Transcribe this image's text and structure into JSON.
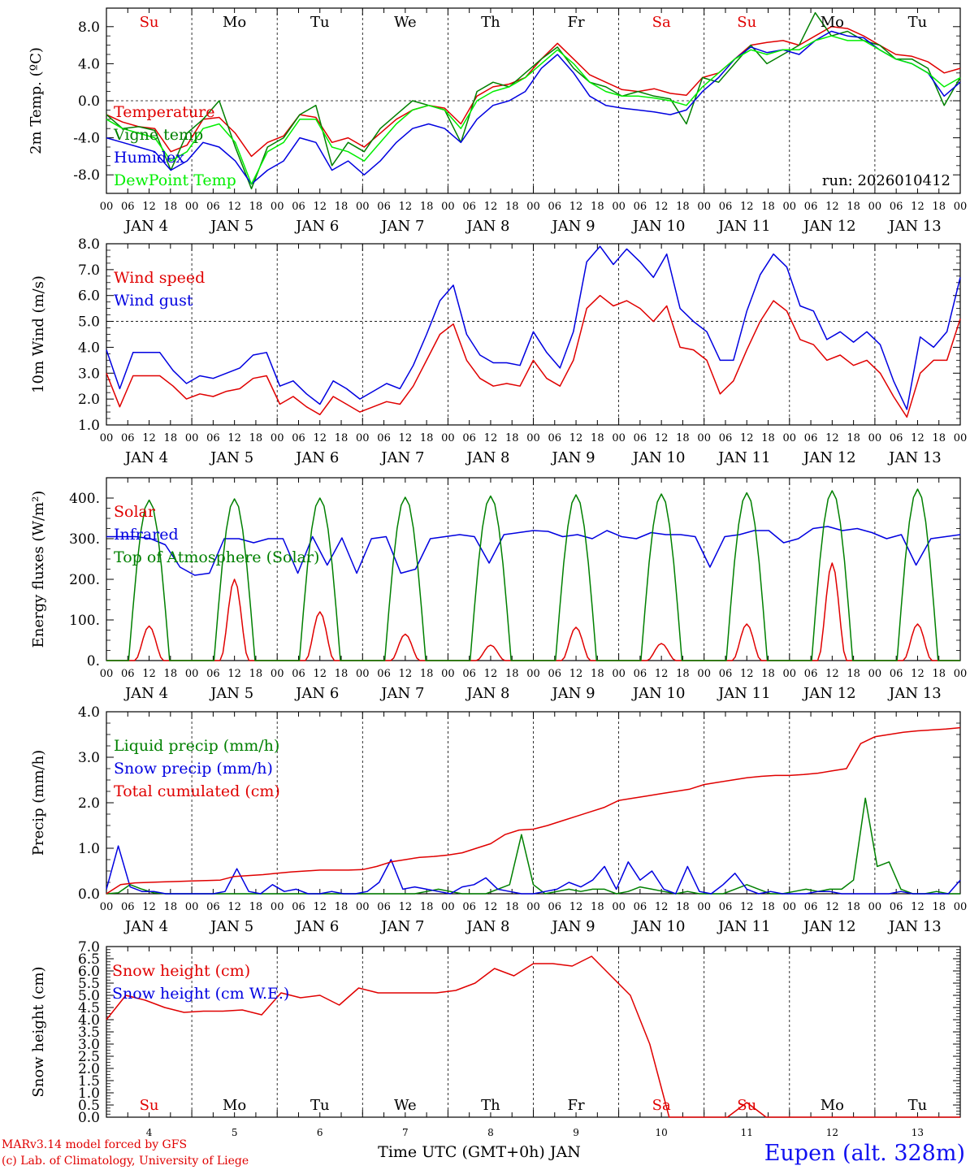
{
  "location": "Eupen (alt. 328m)",
  "credits": [
    "MARv3.14 model forced by GFS",
    "(c) Lab. of Climatology, University of Liege"
  ],
  "x_axis": {
    "title": "Time UTC (GMT+0h) JAN",
    "hour_ticks": [
      "00",
      "06",
      "12",
      "18"
    ],
    "date_labels": [
      "JAN  4",
      "JAN  5",
      "JAN  6",
      "JAN  7",
      "JAN  8",
      "JAN  9",
      "JAN 10",
      "JAN 11",
      "JAN 12",
      "JAN 13"
    ],
    "day_numbers": [
      "4",
      "5",
      "6",
      "7",
      "8",
      "9",
      "10",
      "11",
      "12",
      "13"
    ],
    "weekdays": [
      "Su",
      "Mo",
      "Tu",
      "We",
      "Th",
      "Fr",
      "Sa",
      "Su",
      "Mo",
      "Tu"
    ],
    "weekday_colors": [
      "#e00000",
      "#000000",
      "#000000",
      "#000000",
      "#000000",
      "#000000",
      "#e00000",
      "#e00000",
      "#000000",
      "#000000"
    ]
  },
  "chart_data": [
    {
      "type": "line",
      "panel": "temperature",
      "ylabel": "2m Temp. (ºC)",
      "ylim": [
        -10,
        10
      ],
      "ytick_labels": [
        "-8.0",
        "-4.0",
        "0.0",
        "4.0",
        "8.0"
      ],
      "reference_line": 0,
      "run_label": "run: 2026010412",
      "series": [
        {
          "name": "Temperature",
          "color": "#e00000",
          "values": [
            -1.5,
            -2.3,
            -2.8,
            -3.0,
            -5.5,
            -4.8,
            -2.0,
            -1.8,
            -3.5,
            -6.0,
            -4.5,
            -3.8,
            -1.5,
            -1.8,
            -4.5,
            -4.0,
            -5.0,
            -3.5,
            -2.0,
            -1.0,
            -0.5,
            -0.8,
            -2.5,
            0.5,
            1.5,
            1.8,
            2.5,
            4.5,
            6.2,
            4.5,
            2.8,
            2.0,
            1.2,
            1.0,
            1.3,
            0.8,
            0.6,
            2.5,
            3.0,
            4.5,
            6.0,
            6.3,
            6.5,
            6.0,
            7.0,
            8.0,
            7.8,
            7.0,
            6.0,
            5.0,
            4.8,
            4.2,
            3.0,
            3.5
          ]
        },
        {
          "name": "Vigne temp",
          "color": "#008000",
          "values": [
            -1.5,
            -3.0,
            -2.8,
            -3.2,
            -7.5,
            -3.5,
            -2.0,
            0.0,
            -5.0,
            -9.5,
            -5.0,
            -4.0,
            -1.5,
            -0.5,
            -7.0,
            -4.5,
            -5.5,
            -3.0,
            -1.5,
            0.0,
            -0.5,
            -1.0,
            -4.5,
            1.0,
            2.0,
            1.5,
            3.0,
            4.5,
            5.8,
            3.5,
            2.0,
            1.5,
            0.5,
            1.0,
            0.5,
            0.2,
            -2.5,
            2.5,
            2.0,
            4.0,
            6.0,
            4.0,
            5.0,
            6.0,
            9.5,
            7.0,
            7.5,
            6.5,
            6.0,
            4.5,
            4.5,
            3.5,
            -0.5,
            2.5
          ]
        },
        {
          "name": "Humidex",
          "color": "#0000e0",
          "values": [
            -4.0,
            -4.5,
            -5.0,
            -5.5,
            -7.5,
            -6.5,
            -4.5,
            -5.0,
            -6.5,
            -9.0,
            -7.5,
            -6.5,
            -4.0,
            -4.5,
            -7.5,
            -6.5,
            -8.0,
            -6.5,
            -4.5,
            -3.0,
            -2.5,
            -3.0,
            -4.5,
            -2.0,
            -0.5,
            0.0,
            1.0,
            3.5,
            5.0,
            3.0,
            0.5,
            -0.5,
            -0.8,
            -1.0,
            -1.2,
            -1.5,
            -1.0,
            1.0,
            2.5,
            4.5,
            5.8,
            5.2,
            5.5,
            5.0,
            6.5,
            7.5,
            7.0,
            6.8,
            5.5,
            4.5,
            4.0,
            3.0,
            0.5,
            2.0
          ]
        },
        {
          "name": "DewPoint Temp",
          "color": "#00ee00",
          "values": [
            -2.0,
            -3.0,
            -3.5,
            -4.0,
            -6.5,
            -5.5,
            -3.0,
            -2.5,
            -4.5,
            -9.0,
            -5.5,
            -4.5,
            -2.0,
            -2.0,
            -5.0,
            -5.5,
            -6.5,
            -4.5,
            -2.5,
            -1.0,
            -0.5,
            -1.0,
            -3.0,
            0.0,
            1.0,
            1.5,
            2.5,
            4.0,
            5.5,
            4.0,
            2.0,
            1.0,
            0.5,
            0.5,
            0.3,
            0.0,
            -0.5,
            1.5,
            3.0,
            4.5,
            5.5,
            5.0,
            5.5,
            5.5,
            6.5,
            7.0,
            6.5,
            6.5,
            5.5,
            4.5,
            4.0,
            3.0,
            1.5,
            2.5
          ]
        }
      ]
    },
    {
      "type": "line",
      "panel": "wind",
      "ylabel": "10m Wind (m/s)",
      "ylim": [
        1,
        8
      ],
      "ytick_labels": [
        "1.0",
        "2.0",
        "3.0",
        "4.0",
        "5.0",
        "6.0",
        "7.0",
        "8.0"
      ],
      "reference_line": 5,
      "series": [
        {
          "name": "Wind speed",
          "color": "#e00000",
          "values": [
            3.0,
            1.7,
            2.9,
            2.9,
            2.9,
            2.5,
            2.0,
            2.2,
            2.1,
            2.3,
            2.4,
            2.8,
            2.9,
            1.8,
            2.1,
            1.7,
            1.4,
            2.1,
            1.8,
            1.5,
            1.7,
            1.9,
            1.8,
            2.5,
            3.5,
            4.5,
            4.9,
            3.5,
            2.8,
            2.5,
            2.6,
            2.5,
            3.5,
            2.8,
            2.5,
            3.5,
            5.5,
            6.0,
            5.6,
            5.8,
            5.5,
            5.0,
            5.6,
            4.0,
            3.9,
            3.5,
            2.2,
            2.7,
            3.9,
            5.0,
            5.8,
            5.4,
            4.3,
            4.1,
            3.5,
            3.7,
            3.3,
            3.5,
            3.0,
            2.1,
            1.3,
            3.0,
            3.5,
            3.5,
            5.1
          ]
        },
        {
          "name": "Wind gust",
          "color": "#0000e0",
          "values": [
            3.9,
            2.4,
            3.8,
            3.8,
            3.8,
            3.1,
            2.6,
            2.9,
            2.8,
            3.0,
            3.2,
            3.7,
            3.8,
            2.5,
            2.7,
            2.2,
            1.8,
            2.7,
            2.4,
            2.0,
            2.3,
            2.6,
            2.4,
            3.3,
            4.5,
            5.8,
            6.4,
            4.5,
            3.7,
            3.4,
            3.4,
            3.3,
            4.6,
            3.8,
            3.2,
            4.6,
            7.3,
            7.9,
            7.2,
            7.8,
            7.3,
            6.7,
            7.6,
            5.5,
            5.0,
            4.6,
            3.5,
            3.5,
            5.4,
            6.8,
            7.6,
            7.1,
            5.6,
            5.4,
            4.3,
            4.6,
            4.2,
            4.6,
            4.1,
            2.7,
            1.6,
            4.4,
            4.0,
            4.6,
            6.7
          ]
        }
      ]
    },
    {
      "type": "line",
      "panel": "energy",
      "ylabel": "Energy fluxes (W/m²)",
      "ylim": [
        0,
        450
      ],
      "ytick_labels": [
        "0.",
        "100.",
        "200.",
        "300.",
        "400."
      ],
      "series": [
        {
          "name": "Solar",
          "color": "#e00000",
          "peaks": [
            85,
            200,
            120,
            65,
            38,
            82,
            42,
            90,
            240,
            90
          ]
        },
        {
          "name": "Infrared",
          "color": "#0000e0",
          "values": [
            305,
            305,
            305,
            300,
            285,
            230,
            210,
            215,
            300,
            300,
            290,
            300,
            300,
            215,
            305,
            235,
            302,
            215,
            300,
            305,
            215,
            225,
            300,
            305,
            310,
            305,
            240,
            310,
            315,
            320,
            318,
            305,
            310,
            300,
            320,
            305,
            300,
            315,
            310,
            310,
            305,
            230,
            305,
            310,
            320,
            320,
            290,
            300,
            325,
            330,
            320,
            325,
            315,
            300,
            310,
            235,
            300,
            305,
            310
          ]
        },
        {
          "name": "Top of Atmosphere (Solar)",
          "color": "#008000",
          "peaks": [
            395,
            398,
            400,
            402,
            405,
            408,
            410,
            413,
            418,
            422
          ]
        }
      ]
    },
    {
      "type": "line",
      "panel": "precip",
      "ylabel": "Precip (mm/h)",
      "ylim": [
        0,
        4
      ],
      "ytick_labels": [
        "0.0",
        "1.0",
        "2.0",
        "3.0",
        "4.0"
      ],
      "series": [
        {
          "name": "Liquid precip (mm/h)",
          "color": "#008000",
          "values": [
            0,
            0.02,
            0.2,
            0.1,
            0.02,
            0,
            0,
            0,
            0,
            0,
            0,
            0,
            0,
            0,
            0,
            0,
            0,
            0,
            0,
            0,
            0,
            0,
            0,
            0,
            0,
            0,
            0,
            0.05,
            0.1,
            0.05,
            0,
            0,
            0,
            0.1,
            0.2,
            1.3,
            0.2,
            0,
            0.05,
            0.1,
            0.05,
            0.1,
            0.1,
            0,
            0.05,
            0.15,
            0.1,
            0.05,
            0,
            0.05,
            0,
            0,
            0,
            0.1,
            0.2,
            0.1,
            0,
            0,
            0.05,
            0.1,
            0.05,
            0.1,
            0.1,
            0.3,
            2.1,
            0.6,
            0.7,
            0.1,
            0,
            0,
            0.05,
            0,
            0
          ]
        },
        {
          "name": "Snow precip (mm/h)",
          "color": "#0000e0",
          "values": [
            0.1,
            1.05,
            0.15,
            0.05,
            0.05,
            0,
            0,
            0,
            0,
            0,
            0.05,
            0.55,
            0.05,
            0,
            0.2,
            0.05,
            0.1,
            0,
            0,
            0.05,
            0,
            0,
            0.05,
            0.25,
            0.75,
            0.1,
            0.15,
            0.1,
            0.05,
            0,
            0.15,
            0.2,
            0.35,
            0.1,
            0.05,
            0,
            0,
            0.05,
            0.1,
            0.25,
            0.15,
            0.3,
            0.6,
            0.1,
            0.7,
            0.3,
            0.5,
            0.1,
            0,
            0.6,
            0.05,
            0,
            0.2,
            0.45,
            0.1,
            0,
            0.05,
            0,
            0,
            0,
            0.05,
            0.05,
            0,
            0,
            0,
            0,
            0,
            0.05,
            0,
            0,
            0,
            0,
            0.3
          ]
        },
        {
          "name": "Total cumulated (cm)",
          "color": "#e00000",
          "values": [
            0,
            0.2,
            0.24,
            0.25,
            0.26,
            0.27,
            0.28,
            0.29,
            0.3,
            0.38,
            0.4,
            0.42,
            0.45,
            0.48,
            0.5,
            0.52,
            0.52,
            0.52,
            0.53,
            0.6,
            0.7,
            0.75,
            0.8,
            0.82,
            0.85,
            0.9,
            1.0,
            1.1,
            1.3,
            1.4,
            1.42,
            1.5,
            1.6,
            1.7,
            1.8,
            1.9,
            2.05,
            2.1,
            2.15,
            2.2,
            2.25,
            2.3,
            2.4,
            2.45,
            2.5,
            2.55,
            2.58,
            2.6,
            2.6,
            2.62,
            2.65,
            2.7,
            2.75,
            3.3,
            3.45,
            3.5,
            3.55,
            3.58,
            3.6,
            3.62,
            3.65
          ]
        }
      ]
    },
    {
      "type": "line",
      "panel": "snow",
      "ylabel": "Snow height (cm)",
      "ylim": [
        0,
        7
      ],
      "ytick_labels": [
        "0.0",
        "0.5",
        "1.0",
        "1.5",
        "2.0",
        "2.5",
        "3.0",
        "3.5",
        "4.0",
        "4.5",
        "5.0",
        "5.5",
        "6.0",
        "6.5",
        "7.0"
      ],
      "series": [
        {
          "name": "Snow height (cm)",
          "color": "#e00000",
          "values": [
            4.0,
            5.0,
            4.8,
            4.5,
            4.3,
            4.35,
            4.35,
            4.4,
            4.2,
            5.1,
            4.9,
            5.0,
            4.6,
            5.3,
            5.1,
            5.1,
            5.1,
            5.1,
            5.2,
            5.5,
            6.1,
            5.8,
            6.3,
            6.3,
            6.2,
            6.6,
            5.8,
            5.0,
            3.0,
            0.0,
            0.0,
            0.0,
            0.0,
            0.6,
            0.0,
            0.0,
            0.0,
            0.0,
            0.0,
            0.0,
            0.0,
            0.0,
            0.0,
            0.0,
            0.0
          ]
        },
        {
          "name": "Snow height (cm W.E.)",
          "color": "#0000e0",
          "values": []
        }
      ]
    }
  ]
}
